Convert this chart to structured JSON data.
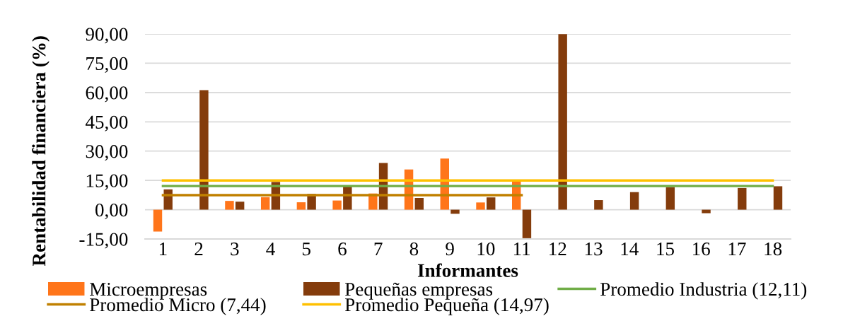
{
  "chart_data": {
    "type": "bar",
    "xlabel": "Informantes",
    "ylabel": "Rentabilidad financiera (%)",
    "categories": [
      "1",
      "2",
      "3",
      "4",
      "5",
      "6",
      "7",
      "8",
      "9",
      "10",
      "11",
      "12",
      "13",
      "14",
      "15",
      "16",
      "17",
      "18"
    ],
    "series": [
      {
        "name": "Microempresas",
        "color": "#ff751a",
        "values": [
          -11.2,
          null,
          4.5,
          6.4,
          3.8,
          4.7,
          8.3,
          20.6,
          26.2,
          3.7,
          14.5,
          null,
          null,
          null,
          null,
          null,
          null,
          null
        ]
      },
      {
        "name": "Pequeñas empresas",
        "color": "#843c0c",
        "values": [
          10.4,
          61.2,
          4.1,
          14.2,
          8.1,
          11.8,
          23.9,
          6.0,
          -2.1,
          6.3,
          -14.6,
          89.9,
          4.9,
          9.0,
          11.5,
          -1.8,
          11.1,
          12.0
        ]
      },
      {
        "name": "Promedio Industria (12,11)",
        "type": "line",
        "color": "#70ad47",
        "values": [
          12.11,
          12.11,
          12.11,
          12.11,
          12.11,
          12.11,
          12.11,
          12.11,
          12.11,
          12.11,
          12.11,
          12.11,
          12.11,
          12.11,
          12.11,
          12.11,
          12.11,
          12.11
        ]
      },
      {
        "name": "Promedio Micro (7,44)",
        "type": "line",
        "color": "#c08000",
        "values": [
          7.44,
          7.44,
          7.44,
          7.44,
          7.44,
          7.44,
          7.44,
          7.44,
          7.44,
          7.44,
          7.44,
          null,
          null,
          null,
          null,
          null,
          null,
          null
        ]
      },
      {
        "name": "Promedio Pequeña (14,97)",
        "type": "line",
        "color": "#ffc000",
        "values": [
          14.97,
          14.97,
          14.97,
          14.97,
          14.97,
          14.97,
          14.97,
          14.97,
          14.97,
          14.97,
          14.97,
          14.97,
          14.97,
          14.97,
          14.97,
          14.97,
          14.97,
          14.97
        ]
      }
    ],
    "ylim": [
      -15,
      90
    ],
    "yticks": [
      {
        "value": -15,
        "label": "-15,00"
      },
      {
        "value": 0,
        "label": "0,00"
      },
      {
        "value": 15,
        "label": "15,00"
      },
      {
        "value": 30,
        "label": "30,00"
      },
      {
        "value": 45,
        "label": "45,00"
      },
      {
        "value": 60,
        "label": "60,00"
      },
      {
        "value": 75,
        "label": "75,00"
      },
      {
        "value": 90,
        "label": "90,00"
      }
    ],
    "grid": "y",
    "legend": "bottom",
    "marker": "none",
    "line_style": "solid"
  }
}
